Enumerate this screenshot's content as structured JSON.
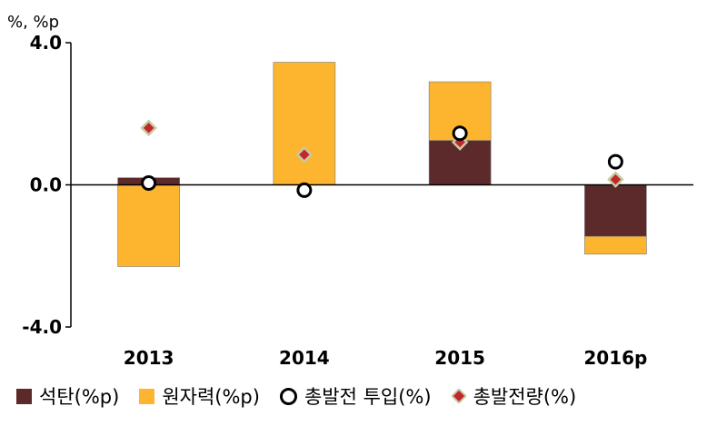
{
  "chart_data": {
    "type": "bar",
    "unit_label": "%, %p",
    "categories": [
      "2013",
      "2014",
      "2015",
      "2016p"
    ],
    "ylim": [
      -4.0,
      4.0
    ],
    "yticks": [
      "4.0",
      "0.0",
      "-4.0"
    ],
    "ytick_values": [
      4.0,
      0.0,
      -4.0
    ],
    "stacked": true,
    "series": [
      {
        "name": "석탄(%p)",
        "kind": "bar",
        "color": "#5c2a2a",
        "values": [
          0.2,
          0.0,
          1.25,
          -1.45
        ]
      },
      {
        "name": "원자력(%p)",
        "kind": "bar",
        "color": "#fdb42f",
        "values": [
          -2.3,
          3.45,
          1.65,
          -0.5
        ]
      },
      {
        "name": "총발전 투입(%)",
        "kind": "circle",
        "color": "#000000",
        "values": [
          0.05,
          -0.15,
          1.45,
          0.65
        ]
      },
      {
        "name": "총발전량(%)",
        "kind": "diamond",
        "color": "#c0282d",
        "values": [
          1.6,
          0.85,
          1.2,
          0.15
        ]
      }
    ]
  }
}
